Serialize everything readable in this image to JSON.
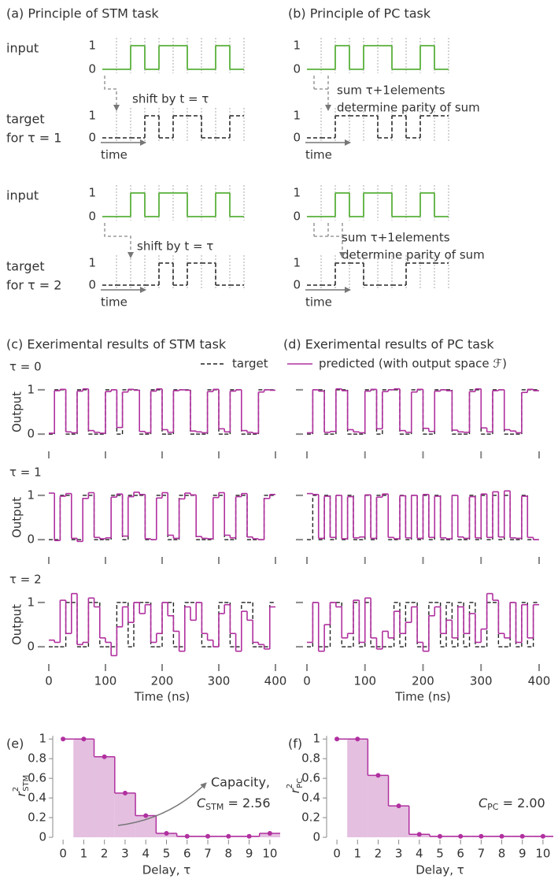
{
  "diagrams": [
    {
      "title": "(a)  Principle of STM task",
      "levels": [
        1,
        0
      ],
      "time_label": "time",
      "rows": [
        {
          "input_label": "input",
          "input": [
            0,
            0,
            1,
            0,
            1,
            1,
            0,
            0,
            1,
            0
          ],
          "target": [
            0,
            0,
            0,
            1,
            0,
            1,
            1,
            0,
            0,
            1
          ],
          "target_label": [
            "target",
            "for τ = 1"
          ],
          "note": [
            "shift by t = τ"
          ]
        },
        {
          "input_label": "input",
          "input": [
            0,
            0,
            1,
            0,
            1,
            1,
            0,
            0,
            1,
            0
          ],
          "target": [
            0,
            0,
            0,
            0,
            1,
            0,
            1,
            1,
            0,
            0
          ],
          "target_label": [
            "target",
            "for τ = 2"
          ],
          "note": [
            "shift by t = τ"
          ]
        }
      ]
    },
    {
      "title": "(b)  Principle of PC task",
      "levels": [
        1,
        0
      ],
      "time_label": "time",
      "rows": [
        {
          "input": [
            0,
            0,
            1,
            0,
            1,
            1,
            0,
            0,
            1,
            0
          ],
          "target": [
            0,
            0,
            1,
            1,
            1,
            0,
            1,
            0,
            1,
            1
          ],
          "note": [
            "sum τ+1elements",
            "determine parity of sum"
          ]
        },
        {
          "input": [
            0,
            0,
            1,
            0,
            1,
            1,
            0,
            0,
            1,
            0
          ],
          "target": [
            0,
            0,
            1,
            1,
            0,
            0,
            0,
            1,
            1,
            1
          ],
          "note": [
            "sum τ+1elements",
            "determine parity of sum"
          ]
        }
      ]
    }
  ],
  "chart_data": [
    {
      "type": "step",
      "title": "(c) Exerimental results of STM task",
      "label": "τ = 0",
      "ylabel": "Output",
      "xlim": [
        0,
        400
      ],
      "ylim": [
        -0.3,
        1.3
      ],
      "xticks": [
        0,
        100,
        200,
        300,
        400
      ],
      "yticks": [
        0,
        1
      ],
      "series": [
        {
          "name": "target",
          "color": "#222222",
          "dash": true,
          "values": [
            0,
            1,
            1,
            0,
            0,
            1,
            1,
            0,
            0,
            0,
            1,
            1,
            0,
            1,
            1,
            1,
            0,
            0,
            1,
            1,
            0,
            0,
            1,
            1,
            1,
            0,
            0,
            0,
            1,
            1,
            0,
            0,
            1,
            1,
            0,
            0,
            0,
            1,
            1,
            1
          ]
        },
        {
          "name": "predicted (with output space ℱ)",
          "color": "#b0309f",
          "dash": false,
          "values": [
            0.02,
            0.98,
            1.01,
            0.05,
            0.03,
            0.97,
            1.02,
            0.08,
            0.04,
            0.02,
            0.96,
            1.0,
            0.15,
            0.95,
            1.01,
            0.99,
            0.06,
            0.03,
            0.97,
            1.02,
            0.1,
            0.04,
            0.98,
            1.0,
            0.99,
            0.07,
            0.05,
            0.03,
            0.96,
            1.01,
            0.12,
            0.05,
            0.97,
            1.0,
            0.08,
            0.04,
            0.02,
            0.95,
            1.0,
            0.99
          ]
        }
      ]
    },
    {
      "type": "step",
      "label": "τ = 1",
      "ylabel": "Output",
      "xlim": [
        0,
        400
      ],
      "ylim": [
        -0.3,
        1.3
      ],
      "xticks": [
        0,
        100,
        200,
        300,
        400
      ],
      "yticks": [
        0,
        1
      ],
      "series": [
        {
          "color": "#222222",
          "dash": true,
          "values": [
            0,
            0,
            1,
            1,
            0,
            0,
            1,
            1,
            0,
            0,
            0,
            1,
            1,
            0,
            1,
            1,
            1,
            0,
            0,
            1,
            1,
            0,
            0,
            1,
            1,
            1,
            0,
            0,
            0,
            1,
            1,
            0,
            0,
            1,
            1,
            0,
            0,
            0,
            1,
            1
          ]
        },
        {
          "color": "#b0309f",
          "dash": false,
          "values": [
            1.05,
            -0.02,
            0.98,
            1.04,
            0.03,
            -0.04,
            0.93,
            1.06,
            0.05,
            0.02,
            0.04,
            0.96,
            1.03,
            0.08,
            0.97,
            1.07,
            1.02,
            0.02,
            0.0,
            0.94,
            1.06,
            0.1,
            0.03,
            0.92,
            1.05,
            1.01,
            0.07,
            0.03,
            0.02,
            0.95,
            1.06,
            0.1,
            0.04,
            0.97,
            1.04,
            0.06,
            0.02,
            0.0,
            0.93,
            1.02
          ]
        }
      ]
    },
    {
      "type": "step",
      "label": "τ = 2",
      "ylabel": "Output",
      "xlabel": "Time (ns)",
      "xlim": [
        0,
        400
      ],
      "ylim": [
        -0.3,
        1.3
      ],
      "xticks": [
        0,
        100,
        200,
        300,
        400
      ],
      "yticks": [
        0,
        1
      ],
      "series": [
        {
          "color": "#222222",
          "dash": true,
          "values": [
            0,
            0,
            0,
            1,
            1,
            0,
            0,
            1,
            1,
            0,
            0,
            0,
            1,
            1,
            0,
            1,
            1,
            1,
            0,
            0,
            1,
            1,
            0,
            0,
            1,
            1,
            1,
            0,
            0,
            0,
            1,
            1,
            0,
            0,
            1,
            1,
            0,
            0,
            0,
            1
          ]
        },
        {
          "color": "#b0309f",
          "dash": false,
          "values": [
            0.15,
            0.1,
            1.05,
            0.3,
            1.2,
            0.05,
            0.1,
            1.1,
            0.9,
            0.2,
            0.1,
            -0.2,
            0.45,
            0.9,
            0.55,
            1.0,
            0.75,
            0.95,
            0.1,
            0.3,
            1.0,
            0.7,
            0.35,
            -0.1,
            0.9,
            0.6,
            1.0,
            0.3,
            0.15,
            0.0,
            0.75,
            0.95,
            0.3,
            -0.1,
            0.8,
            0.6,
            0.1,
            0.05,
            -0.05,
            0.9
          ]
        }
      ]
    },
    {
      "type": "step",
      "title": "(d) Exerimental results of PC task",
      "xlim": [
        0,
        400
      ],
      "ylim": [
        -0.3,
        1.3
      ],
      "xticks": [
        0,
        100,
        200,
        300,
        400
      ],
      "yticks": [
        0,
        1
      ],
      "series": [
        {
          "color": "#222222",
          "dash": true,
          "values": [
            0,
            1,
            1,
            0,
            0,
            1,
            1,
            0,
            0,
            0,
            1,
            1,
            0,
            1,
            1,
            1,
            0,
            0,
            1,
            1,
            0,
            0,
            1,
            1,
            1,
            0,
            0,
            0,
            1,
            1,
            0,
            0,
            1,
            1,
            0,
            0,
            0,
            1,
            1,
            1
          ]
        },
        {
          "color": "#b0309f",
          "dash": false,
          "values": [
            0.03,
            1.0,
            0.97,
            0.04,
            0.06,
            1.02,
            0.98,
            0.1,
            0.05,
            0.03,
            0.97,
            1.01,
            0.12,
            0.96,
            1.0,
            1.02,
            0.08,
            0.04,
            0.95,
            1.01,
            0.13,
            0.06,
            0.97,
            1.0,
            0.98,
            0.09,
            0.05,
            0.04,
            0.96,
            1.02,
            0.14,
            0.05,
            0.98,
            1.0,
            0.1,
            0.07,
            0.03,
            0.94,
            1.01,
            0.98
          ]
        }
      ]
    },
    {
      "type": "step",
      "xlim": [
        0,
        400
      ],
      "ylim": [
        -0.3,
        1.3
      ],
      "xticks": [
        0,
        100,
        200,
        300,
        400
      ],
      "yticks": [
        0,
        1
      ],
      "series": [
        {
          "color": "#222222",
          "dash": true,
          "values": [
            0,
            1,
            0,
            1,
            0,
            1,
            0,
            1,
            0,
            0,
            1,
            0,
            1,
            1,
            0,
            0,
            1,
            0,
            1,
            0,
            1,
            0,
            1,
            0,
            0,
            1,
            0,
            0,
            1,
            0,
            1,
            0,
            1,
            0,
            1,
            0,
            0,
            1,
            0,
            0
          ]
        },
        {
          "color": "#b0309f",
          "dash": false,
          "values": [
            1.04,
            1.02,
            0.03,
            0.98,
            0.05,
            1.0,
            0.02,
            0.97,
            0.04,
            0.06,
            1.01,
            0.03,
            0.96,
            1.03,
            0.05,
            0.02,
            0.99,
            0.04,
            1.0,
            0.03,
            1.02,
            0.05,
            0.98,
            0.04,
            0.02,
            1.0,
            0.06,
            0.03,
            0.97,
            0.04,
            1.03,
            0.05,
            1.08,
            0.06,
            1.1,
            0.04,
            0.03,
            0.98,
            0.05,
            0.0
          ]
        }
      ]
    },
    {
      "type": "step",
      "xlabel": "Time (ns)",
      "xlim": [
        0,
        400
      ],
      "ylim": [
        -0.3,
        1.3
      ],
      "xticks": [
        0,
        100,
        200,
        300,
        400
      ],
      "yticks": [
        0,
        1
      ],
      "series": [
        {
          "color": "#222222",
          "dash": true,
          "values": [
            0,
            1,
            0,
            0,
            1,
            1,
            0,
            0,
            1,
            0,
            1,
            0,
            0,
            0,
            0,
            1,
            0,
            1,
            1,
            0,
            0,
            1,
            1,
            0,
            1,
            0,
            1,
            0,
            1,
            0,
            0,
            1,
            1,
            0,
            0,
            1,
            0,
            1,
            0,
            1
          ]
        },
        {
          "color": "#b0309f",
          "dash": false,
          "values": [
            0.1,
            1.0,
            -0.1,
            0.5,
            1.0,
            0.9,
            0.2,
            0.3,
            1.05,
            0.1,
            1.1,
            0.2,
            -0.05,
            0.35,
            0.2,
            0.8,
            0.3,
            0.55,
            0.9,
            0.1,
            -0.1,
            0.7,
            0.9,
            0.3,
            0.6,
            0.2,
            0.9,
            0.3,
            0.75,
            0.1,
            0.4,
            1.2,
            1.05,
            0.3,
            0.2,
            1.0,
            0.1,
            0.95,
            0.2,
            0.95
          ]
        }
      ]
    },
    {
      "type": "capacity",
      "title": "(e)",
      "xlabel": "Delay, τ",
      "ylabel": {
        "text": "r",
        "sup": "2",
        "sub": "STM"
      },
      "xlim": [
        -0.5,
        10.5
      ],
      "ylim": [
        0,
        1.05
      ],
      "xticks": [
        0,
        1,
        2,
        3,
        4,
        5,
        6,
        7,
        8,
        9,
        10
      ],
      "yticks": [
        0,
        0.2,
        0.4,
        0.6,
        0.8,
        1
      ],
      "color": "#b0309f",
      "area_color": "#e4bfe0",
      "values": [
        1,
        1,
        0.82,
        0.45,
        0.22,
        0.04,
        0.01,
        0.01,
        0.01,
        0.01,
        0.04
      ],
      "annotation": "Capacity,",
      "capacity": {
        "symbol": "C",
        "sub": "STM",
        "text": " = 2.56"
      }
    },
    {
      "type": "capacity",
      "title": "(f)",
      "xlabel": "Delay, τ",
      "ylabel": {
        "text": "r",
        "sup": "2",
        "sub": "PC"
      },
      "xlim": [
        -0.5,
        10.5
      ],
      "ylim": [
        0,
        1.05
      ],
      "xticks": [
        0,
        1,
        2,
        3,
        4,
        5,
        6,
        7,
        8,
        9,
        10
      ],
      "yticks": [
        0,
        0.2,
        0.4,
        0.6,
        0.8,
        1
      ],
      "color": "#b0309f",
      "area_color": "#e4bfe0",
      "values": [
        1,
        1,
        0.63,
        0.32,
        0.03,
        0.01,
        0.01,
        0.01,
        0.01,
        0.01,
        0.01
      ],
      "capacity": {
        "symbol": "C",
        "sub": "PC",
        "text": " = 2.00"
      }
    }
  ]
}
